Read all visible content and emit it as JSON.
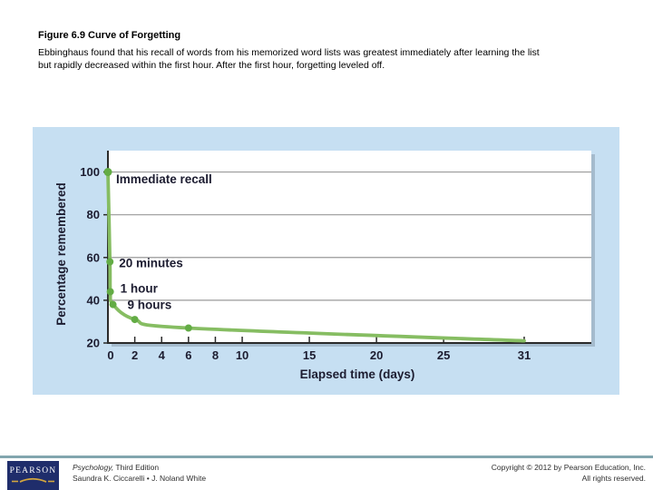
{
  "caption": {
    "title": "Figure 6.9 Curve of Forgetting",
    "description_lines": [
      "Ebbinghaus found that his recall of words from his memorized word lists was greatest immediately after learning the list",
      "but rapidly decreased within the first hour. After the first hour, forgetting leveled off."
    ]
  },
  "chart_data": {
    "type": "line",
    "title": "",
    "xlabel": "Elapsed time (days)",
    "ylabel": "Percentage remembered",
    "xlim": [
      0,
      36
    ],
    "ylim": [
      20,
      110
    ],
    "xticks": [
      0,
      2,
      4,
      6,
      8,
      10,
      15,
      20,
      25,
      31
    ],
    "yticks": [
      100,
      80,
      60,
      40,
      20
    ],
    "grid": "horizontal gridlines at y ticks",
    "legend": "none",
    "series": [
      {
        "name": "Percentage remembered over elapsed time",
        "points": [
          {
            "x_days": 0,
            "y": 100,
            "label": "Immediate recall",
            "marker": true
          },
          {
            "x_days": 0.014,
            "y": 58,
            "label": "20 minutes",
            "marker": true
          },
          {
            "x_days": 0.042,
            "y": 44,
            "label": "1 hour",
            "marker": true
          },
          {
            "x_days": 0.375,
            "y": 38,
            "label": "9 hours",
            "marker": true
          },
          {
            "x_days": 2,
            "y": 31,
            "label": "",
            "marker": true
          },
          {
            "x_days": 6,
            "y": 27,
            "label": "",
            "marker": true
          },
          {
            "x_days": 31,
            "y": 21,
            "label": "",
            "marker": false
          }
        ]
      }
    ]
  },
  "footer": {
    "book_title_italic": "Psychology,",
    "book_title_rest": " Third Edition",
    "authors": "Saundra K. Ciccarelli • J. Noland White",
    "copyright": "Copyright © 2012 by Pearson Education, Inc.",
    "rights": "All rights reserved.",
    "logo_text": "PEARSON"
  },
  "colors": {
    "panel_blue": "#c6dff2",
    "plot_white": "#ffffff",
    "grid_gray": "#9a9a9a",
    "axis_dark": "#2a2a2a",
    "curve_green": "#86bd62",
    "marker_green": "#63ac45",
    "chart_text": "#1c1c30",
    "pearson_navy": "#1f2d6b",
    "pearson_gold": "#d2a63f",
    "rule_teal": "#82a6ae",
    "footer_text": "#2f2f2f",
    "caption_text": "#000000"
  }
}
